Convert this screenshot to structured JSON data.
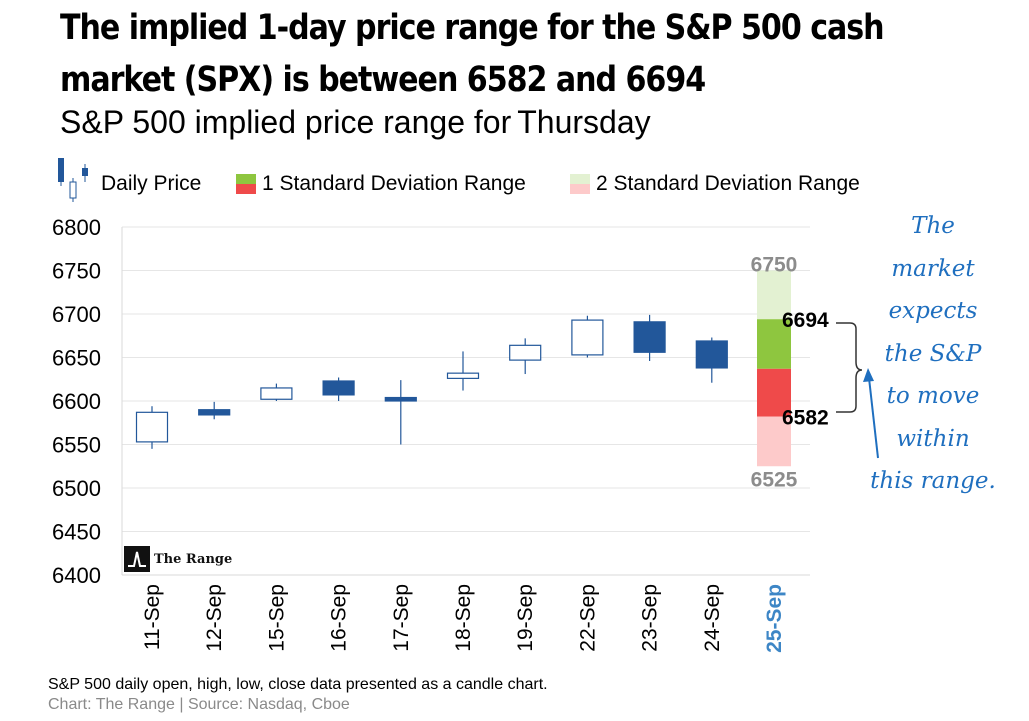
{
  "headline": {
    "line1": "The implied 1-day price range for the S&P 500 cash",
    "line2": "market (SPX) is between 6582 and 6694"
  },
  "subtitle": {
    "prefix": "S&P 500 implied price range for",
    "day": "Thursday"
  },
  "legend": {
    "daily_price": "Daily Price",
    "one_sd": "1 Standard Deviation Range",
    "two_sd": "2 Standard Deviation Range"
  },
  "annotation": {
    "lines": [
      "The",
      "market",
      "expects",
      "the S&P",
      "to move",
      "within",
      "this range."
    ]
  },
  "logo": {
    "text": "The Range"
  },
  "footer": {
    "note": "S&P 500 daily open, high, low, close data presented as a candle chart.",
    "credit": "Chart: The Range | Source: Nasdaq, Cboe"
  },
  "colors": {
    "candle": "#22579a",
    "sd1_green": "#8ec63f",
    "sd1_red": "#ef4a4a",
    "sd2_green": "#e3f1d2",
    "sd2_red": "#fdcaca",
    "highlight_date": "#3d86c6",
    "annotation": "#1f6fbf"
  },
  "chart_data": {
    "type": "candlestick",
    "ylim": [
      6400,
      6800
    ],
    "yticks": [
      6400,
      6450,
      6500,
      6550,
      6600,
      6650,
      6700,
      6750,
      6800
    ],
    "candles": [
      {
        "date": "11-Sep",
        "open": 6553,
        "high": 6594,
        "low": 6545,
        "close": 6587
      },
      {
        "date": "12-Sep",
        "open": 6590,
        "high": 6599,
        "low": 6579,
        "close": 6584
      },
      {
        "date": "15-Sep",
        "open": 6602,
        "high": 6620,
        "low": 6600,
        "close": 6615
      },
      {
        "date": "16-Sep",
        "open": 6623,
        "high": 6627,
        "low": 6600,
        "close": 6607
      },
      {
        "date": "17-Sep",
        "open": 6604,
        "high": 6624,
        "low": 6550,
        "close": 6600
      },
      {
        "date": "18-Sep",
        "open": 6626,
        "high": 6657,
        "low": 6612,
        "close": 6632
      },
      {
        "date": "19-Sep",
        "open": 6647,
        "high": 6672,
        "low": 6631,
        "close": 6664
      },
      {
        "date": "22-Sep",
        "open": 6653,
        "high": 6698,
        "low": 6650,
        "close": 6693
      },
      {
        "date": "23-Sep",
        "open": 6691,
        "high": 6699,
        "low": 6646,
        "close": 6656
      },
      {
        "date": "24-Sep",
        "open": 6669,
        "high": 6673,
        "low": 6621,
        "close": 6638
      }
    ],
    "forecast": {
      "date": "25-Sep",
      "mid": 6637,
      "sd1": [
        6582,
        6694
      ],
      "sd2": [
        6525,
        6750
      ],
      "labels": {
        "sd2_high": "6750",
        "sd1_high": "6694",
        "sd1_low": "6582",
        "sd2_low": "6525"
      }
    }
  }
}
